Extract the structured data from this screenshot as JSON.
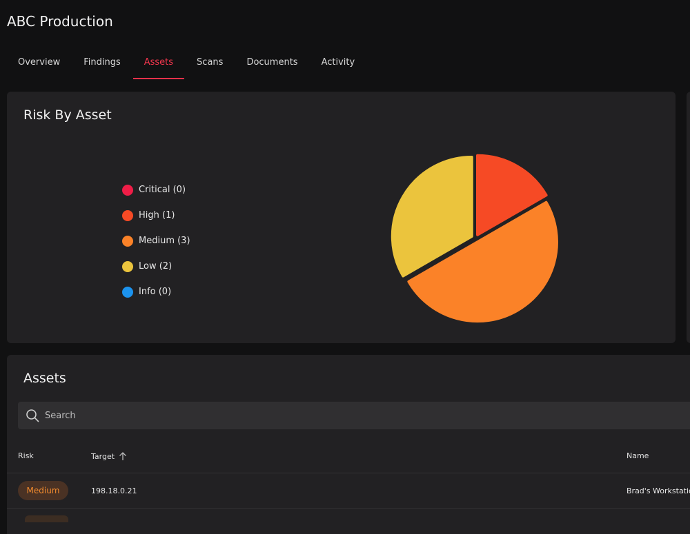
{
  "app": {
    "title": "ABC Production"
  },
  "tabs": [
    {
      "label": "Overview",
      "active": false
    },
    {
      "label": "Findings",
      "active": false
    },
    {
      "label": "Assets",
      "active": true
    },
    {
      "label": "Scans",
      "active": false
    },
    {
      "label": "Documents",
      "active": false
    },
    {
      "label": "Activity",
      "active": false
    }
  ],
  "risk_card": {
    "title": "Risk By Asset",
    "legend": [
      {
        "label": "Critical (0)",
        "color": "#ef1d47"
      },
      {
        "label": "High (1)",
        "color": "#f64a25"
      },
      {
        "label": "Medium (3)",
        "color": "#fb8228"
      },
      {
        "label": "Low (2)",
        "color": "#ebc43d"
      },
      {
        "label": "Info (0)",
        "color": "#1c93ee"
      }
    ]
  },
  "chart_data": {
    "type": "pie",
    "categories": [
      "Critical",
      "High",
      "Medium",
      "Low",
      "Info"
    ],
    "values": [
      0,
      1,
      3,
      2,
      0
    ],
    "colors": [
      "#ef1d47",
      "#f64a25",
      "#fb8228",
      "#ebc43d",
      "#1c93ee"
    ],
    "title": "Risk By Asset",
    "legend": "left"
  },
  "assets": {
    "title": "Assets",
    "search_placeholder": "Search",
    "columns": {
      "risk": "Risk",
      "target": "Target",
      "name": "Name"
    },
    "rows": [
      {
        "risk": "Medium",
        "target": "198.18.0.21",
        "name": "Brad's Workstation"
      }
    ]
  }
}
